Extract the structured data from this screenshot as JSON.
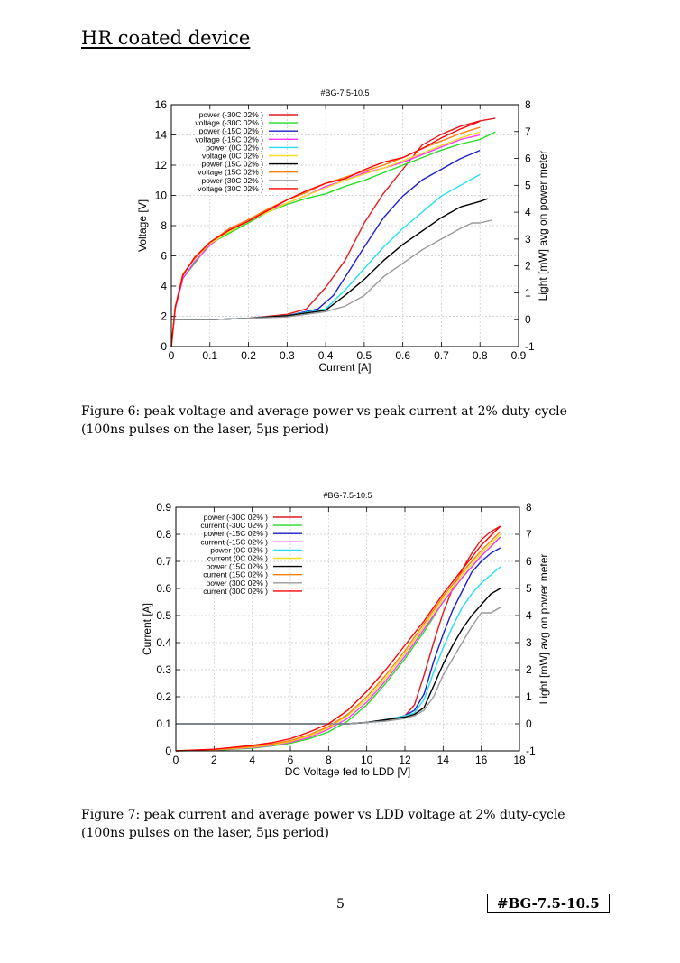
{
  "header": {
    "title": "HR coated device"
  },
  "figures": [
    {
      "caption": "Figure 6: peak voltage and average power vs peak current at 2% duty-cycle (100ns pulses on the laser, 5μs period)"
    },
    {
      "caption": "Figure 7: peak current and average power vs LDD voltage at 2% duty-cycle (100ns pulses on the laser, 5μs period)"
    }
  ],
  "footer": {
    "page_number": "5",
    "doc_id": "#BG-7.5-10.5"
  },
  "chart_data": [
    {
      "type": "line",
      "title": "#BG-7.5-10.5",
      "xlabel": "Current [A]",
      "ylabel": "Voltage [V]",
      "y2label": "Light [mW] avg on power meter",
      "xlim": [
        0,
        0.9
      ],
      "ylim": [
        0,
        16
      ],
      "y2lim": [
        -1,
        8
      ],
      "xticks": [
        "0",
        "0.1",
        "0.2",
        "0.3",
        "0.4",
        "0.5",
        "0.6",
        "0.7",
        "0.8",
        "0.9"
      ],
      "yticks": [
        "0",
        "2",
        "4",
        "6",
        "8",
        "10",
        "12",
        "14",
        "16"
      ],
      "y2ticks": [
        "-1",
        "0",
        "1",
        "2",
        "3",
        "4",
        "5",
        "6",
        "7",
        "8"
      ],
      "grid": true,
      "legend_position": "top-left",
      "series": [
        {
          "name": "power (-30C 02% )",
          "color": "#e41a1c",
          "axis": "y2",
          "x": [
            0,
            0.1,
            0.2,
            0.3,
            0.35,
            0.4,
            0.45,
            0.5,
            0.55,
            0.6,
            0.65,
            0.7,
            0.75,
            0.8,
            0.84
          ],
          "y": [
            0,
            0,
            0.05,
            0.2,
            0.4,
            1.2,
            2.2,
            3.6,
            4.7,
            5.6,
            6.5,
            6.9,
            7.2,
            7.4,
            7.5
          ]
        },
        {
          "name": "voltage (-30C 02% )",
          "color": "#22dd22",
          "axis": "y",
          "x": [
            0,
            0.01,
            0.03,
            0.06,
            0.1,
            0.15,
            0.2,
            0.25,
            0.3,
            0.35,
            0.4,
            0.45,
            0.5,
            0.55,
            0.6,
            0.65,
            0.7,
            0.75,
            0.8,
            0.84
          ],
          "y": [
            0,
            2.5,
            4.5,
            5.5,
            6.8,
            7.5,
            8.2,
            8.9,
            9.4,
            9.8,
            10.1,
            10.6,
            11.0,
            11.5,
            12.0,
            12.5,
            13.0,
            13.4,
            13.7,
            14.2
          ]
        },
        {
          "name": "power (-15C 02% )",
          "color": "#1f1fcf",
          "axis": "y2",
          "x": [
            0,
            0.1,
            0.2,
            0.3,
            0.38,
            0.42,
            0.46,
            0.5,
            0.55,
            0.6,
            0.65,
            0.7,
            0.75,
            0.8
          ],
          "y": [
            0,
            0,
            0.05,
            0.15,
            0.4,
            0.9,
            1.8,
            2.7,
            3.8,
            4.6,
            5.2,
            5.6,
            6.0,
            6.3
          ]
        },
        {
          "name": "voltage (-15C 02% )",
          "color": "#ff33ff",
          "axis": "y",
          "x": [
            0,
            0.01,
            0.03,
            0.06,
            0.1,
            0.15,
            0.2,
            0.25,
            0.3,
            0.35,
            0.4,
            0.45,
            0.5,
            0.55,
            0.6,
            0.65,
            0.7,
            0.75,
            0.8
          ],
          "y": [
            0,
            2.5,
            4.5,
            5.6,
            6.7,
            7.7,
            8.4,
            9.0,
            9.5,
            10.0,
            10.6,
            11.0,
            11.5,
            11.8,
            12.2,
            12.7,
            13.2,
            13.7,
            14.0
          ]
        },
        {
          "name": "power (0C 02% )",
          "color": "#22e0f0",
          "axis": "y2",
          "x": [
            0,
            0.1,
            0.2,
            0.3,
            0.4,
            0.45,
            0.5,
            0.55,
            0.6,
            0.65,
            0.7,
            0.75,
            0.8
          ],
          "y": [
            0,
            0,
            0.05,
            0.15,
            0.4,
            1.1,
            1.9,
            2.7,
            3.4,
            4.0,
            4.6,
            5.0,
            5.4
          ]
        },
        {
          "name": "voltage (0C 02% )",
          "color": "#f0e020",
          "axis": "y",
          "x": [
            0,
            0.01,
            0.03,
            0.06,
            0.1,
            0.15,
            0.2,
            0.25,
            0.3,
            0.35,
            0.4,
            0.45,
            0.5,
            0.55,
            0.6,
            0.65,
            0.7,
            0.75,
            0.8
          ],
          "y": [
            0,
            2.6,
            4.8,
            5.8,
            6.8,
            7.6,
            8.3,
            8.9,
            9.5,
            10.0,
            10.5,
            11.0,
            11.4,
            11.8,
            12.3,
            12.8,
            13.3,
            13.8,
            14.2
          ]
        },
        {
          "name": "power (15C 02% )",
          "color": "#000000",
          "axis": "y2",
          "x": [
            0,
            0.1,
            0.2,
            0.3,
            0.4,
            0.45,
            0.5,
            0.55,
            0.6,
            0.65,
            0.7,
            0.75,
            0.8,
            0.82
          ],
          "y": [
            0,
            0,
            0.05,
            0.15,
            0.35,
            0.9,
            1.5,
            2.2,
            2.8,
            3.3,
            3.8,
            4.2,
            4.4,
            4.5
          ]
        },
        {
          "name": "voltage (15C 02% )",
          "color": "#ff7f0e",
          "axis": "y",
          "x": [
            0,
            0.01,
            0.03,
            0.06,
            0.1,
            0.15,
            0.2,
            0.25,
            0.3,
            0.35,
            0.4,
            0.45,
            0.5,
            0.55,
            0.6,
            0.65,
            0.7,
            0.75,
            0.8
          ],
          "y": [
            0,
            2.6,
            4.8,
            5.8,
            6.9,
            7.8,
            8.4,
            9.1,
            9.7,
            10.2,
            10.8,
            11.2,
            11.6,
            12.0,
            12.5,
            13.1,
            13.6,
            14.1,
            14.5
          ]
        },
        {
          "name": "power (30C 02% )",
          "color": "#999999",
          "axis": "y2",
          "x": [
            0,
            0.1,
            0.2,
            0.3,
            0.4,
            0.45,
            0.5,
            0.55,
            0.6,
            0.65,
            0.7,
            0.75,
            0.78,
            0.8,
            0.83
          ],
          "y": [
            0,
            0,
            0.05,
            0.1,
            0.3,
            0.5,
            0.9,
            1.6,
            2.1,
            2.6,
            3.0,
            3.4,
            3.6,
            3.6,
            3.7
          ]
        },
        {
          "name": "voltage (30C 02% )",
          "color": "#ff0000",
          "axis": "y",
          "x": [
            0,
            0.01,
            0.03,
            0.06,
            0.1,
            0.15,
            0.2,
            0.25,
            0.3,
            0.35,
            0.4,
            0.45,
            0.5,
            0.55,
            0.6,
            0.65,
            0.7,
            0.75,
            0.8
          ],
          "y": [
            0,
            2.6,
            4.7,
            5.9,
            6.9,
            7.7,
            8.3,
            9.0,
            9.7,
            10.3,
            10.8,
            11.1,
            11.7,
            12.2,
            12.5,
            13.1,
            13.8,
            14.4,
            14.9
          ]
        }
      ]
    },
    {
      "type": "line",
      "title": "#BG-7.5-10.5",
      "xlabel": "DC Voltage fed to LDD [V]",
      "ylabel": "Current [A]",
      "y2label": "Light [mW] avg on power meter",
      "xlim": [
        0,
        18
      ],
      "ylim": [
        0,
        0.9
      ],
      "y2lim": [
        -1,
        8
      ],
      "xticks": [
        "0",
        "2",
        "4",
        "6",
        "8",
        "10",
        "12",
        "14",
        "16",
        "18"
      ],
      "yticks": [
        "0",
        "0.1",
        "0.2",
        "0.3",
        "0.4",
        "0.5",
        "0.6",
        "0.7",
        "0.8",
        "0.9"
      ],
      "y2ticks": [
        "-1",
        "0",
        "1",
        "2",
        "3",
        "4",
        "5",
        "6",
        "7",
        "8"
      ],
      "grid": true,
      "legend_position": "top-left",
      "series": [
        {
          "name": "power (-30C 02% )",
          "color": "#e41a1c",
          "axis": "y2",
          "x": [
            0,
            2,
            4,
            6,
            8,
            9,
            10,
            11,
            12,
            12.5,
            13,
            13.5,
            14,
            14.5,
            15,
            15.5,
            16,
            16.5,
            17
          ],
          "y": [
            0,
            0,
            0,
            0,
            0,
            0,
            0.05,
            0.15,
            0.3,
            0.7,
            1.8,
            3.0,
            4.1,
            5.0,
            5.7,
            6.3,
            6.8,
            7.1,
            7.3
          ]
        },
        {
          "name": "current (-30C 02% )",
          "color": "#22dd22",
          "axis": "y",
          "x": [
            0,
            2,
            4,
            5,
            6,
            7,
            8,
            9,
            10,
            11,
            12,
            13,
            14,
            15,
            16,
            17
          ],
          "y": [
            0,
            0.002,
            0.01,
            0.018,
            0.028,
            0.045,
            0.07,
            0.11,
            0.17,
            0.25,
            0.34,
            0.44,
            0.55,
            0.64,
            0.72,
            0.79
          ]
        },
        {
          "name": "power (-15C 02% )",
          "color": "#1f1fcf",
          "axis": "y2",
          "x": [
            0,
            2,
            4,
            6,
            8,
            9,
            10,
            11,
            12,
            12.5,
            13,
            13.5,
            14,
            14.5,
            15,
            15.5,
            16,
            16.5,
            17
          ],
          "y": [
            0,
            0,
            0,
            0,
            0,
            0,
            0.05,
            0.15,
            0.3,
            0.5,
            1.1,
            2.3,
            3.3,
            4.2,
            4.9,
            5.6,
            6.0,
            6.3,
            6.5
          ]
        },
        {
          "name": "current (-15C 02% )",
          "color": "#ff33ff",
          "axis": "y",
          "x": [
            0,
            2,
            4,
            5,
            6,
            7,
            8,
            9,
            10,
            11,
            12,
            13,
            14,
            15,
            16,
            17
          ],
          "y": [
            0,
            0.003,
            0.012,
            0.02,
            0.032,
            0.05,
            0.08,
            0.12,
            0.18,
            0.26,
            0.35,
            0.45,
            0.55,
            0.64,
            0.72,
            0.79
          ]
        },
        {
          "name": "power (0C 02% )",
          "color": "#22e0f0",
          "axis": "y2",
          "x": [
            0,
            2,
            4,
            6,
            8,
            9,
            10,
            11,
            12,
            12.5,
            13,
            13.5,
            14,
            14.5,
            15,
            15.5,
            16,
            16.5,
            17
          ],
          "y": [
            0,
            0,
            0,
            0,
            0,
            0,
            0.05,
            0.15,
            0.3,
            0.4,
            0.9,
            1.9,
            2.8,
            3.6,
            4.3,
            4.8,
            5.2,
            5.5,
            5.8
          ]
        },
        {
          "name": "current (0C 02% )",
          "color": "#f0e020",
          "axis": "y",
          "x": [
            0,
            2,
            4,
            5,
            6,
            7,
            8,
            9,
            10,
            11,
            12,
            13,
            14,
            15,
            16,
            17
          ],
          "y": [
            0,
            0.004,
            0.014,
            0.022,
            0.035,
            0.055,
            0.085,
            0.13,
            0.19,
            0.27,
            0.36,
            0.46,
            0.56,
            0.65,
            0.73,
            0.8
          ]
        },
        {
          "name": "power (15C 02% )",
          "color": "#000000",
          "axis": "y2",
          "x": [
            0,
            2,
            4,
            6,
            8,
            9,
            10,
            11,
            12,
            12.5,
            13,
            13.5,
            14,
            14.5,
            15,
            15.5,
            16,
            16.5,
            17
          ],
          "y": [
            0,
            0,
            0,
            0,
            0,
            0,
            0.05,
            0.15,
            0.25,
            0.35,
            0.6,
            1.4,
            2.2,
            2.9,
            3.5,
            4.0,
            4.4,
            4.8,
            5.0
          ]
        },
        {
          "name": "current (15C 02% )",
          "color": "#ff7f0e",
          "axis": "y",
          "x": [
            0,
            2,
            4,
            5,
            6,
            7,
            8,
            9,
            10,
            11,
            12,
            13,
            14,
            15,
            16,
            17
          ],
          "y": [
            0,
            0.005,
            0.016,
            0.025,
            0.038,
            0.06,
            0.09,
            0.135,
            0.2,
            0.28,
            0.37,
            0.47,
            0.57,
            0.66,
            0.74,
            0.81
          ]
        },
        {
          "name": "power (30C 02% )",
          "color": "#999999",
          "axis": "y2",
          "x": [
            0,
            2,
            4,
            6,
            8,
            9,
            10,
            11,
            12,
            12.5,
            13,
            13.5,
            14,
            14.5,
            15,
            15.5,
            16,
            16.5,
            17
          ],
          "y": [
            0,
            0,
            0,
            0,
            0,
            0,
            0.05,
            0.1,
            0.2,
            0.3,
            0.5,
            1.0,
            1.8,
            2.4,
            3.0,
            3.6,
            4.1,
            4.1,
            4.3
          ]
        },
        {
          "name": "current (30C 02% )",
          "color": "#ff0000",
          "axis": "y",
          "x": [
            0,
            2,
            4,
            5,
            6,
            7,
            8,
            9,
            10,
            11,
            12,
            13,
            14,
            15,
            16,
            17
          ],
          "y": [
            0,
            0.006,
            0.02,
            0.03,
            0.045,
            0.07,
            0.1,
            0.15,
            0.22,
            0.3,
            0.39,
            0.48,
            0.58,
            0.67,
            0.76,
            0.83
          ]
        }
      ]
    }
  ]
}
